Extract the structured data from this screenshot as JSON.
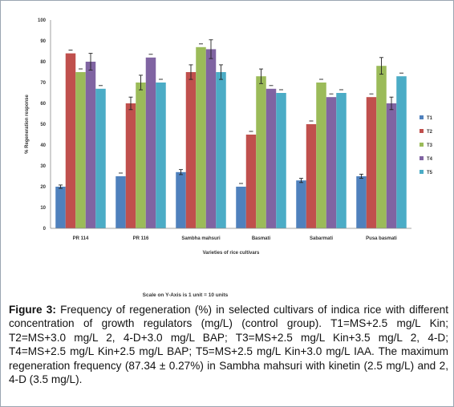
{
  "chart_data": {
    "type": "bar",
    "categories": [
      "PR 114",
      "PR 116",
      "Sambha mahsuri",
      "Basmati",
      "Sabarmati",
      "Pusa basmati"
    ],
    "series": [
      {
        "name": "T1",
        "color": "#4f81bd",
        "values": [
          20,
          25,
          27,
          20,
          23,
          25
        ],
        "errors": [
          0.8,
          0,
          1.2,
          0,
          1,
          1
        ]
      },
      {
        "name": "T2",
        "color": "#c0504d",
        "values": [
          84,
          60,
          75,
          45,
          50,
          63
        ],
        "errors": [
          0,
          3,
          3.5,
          0,
          0,
          0
        ]
      },
      {
        "name": "T3",
        "color": "#9bbb59",
        "values": [
          75,
          70,
          87,
          73,
          70,
          78
        ],
        "errors": [
          0,
          3.5,
          0,
          3.5,
          0,
          4
        ]
      },
      {
        "name": "T4",
        "color": "#8064a2",
        "values": [
          80,
          82,
          86,
          67,
          63,
          60
        ],
        "errors": [
          4,
          0,
          4.5,
          0,
          0,
          3
        ]
      },
      {
        "name": "T5",
        "color": "#4bacc6",
        "values": [
          67,
          70,
          75,
          65,
          65,
          73
        ],
        "errors": [
          0,
          0,
          3.5,
          0,
          0,
          0
        ]
      }
    ],
    "yticks": [
      0,
      10,
      20,
      30,
      40,
      50,
      60,
      70,
      80,
      90,
      100
    ],
    "ylim": [
      0,
      100
    ],
    "ylabel": "% Regeneration response",
    "xlabel": "Varieties of rice cultivars",
    "legend_position": "right",
    "scale_note": "Scale on Y-Axis is 1 unit = 10 units"
  },
  "caption": {
    "label": "Figure 3:",
    "text": " Frequency of regeneration (%) in selected cultivars of indica rice with different concentration of growth regulators (mg/L) (control group). T1=MS+2.5 mg/L Kin; T2=MS+3.0 mg/L 2, 4-D+3.0 mg/L BAP; T3=MS+2.5 mg/L Kin+3.5 mg/L 2, 4-D; T4=MS+2.5 mg/L Kin+2.5 mg/L BAP; T5=MS+2.5 mg/L Kin+3.0 mg/L IAA. The maximum regeneration frequency (87.34 ± 0.27%) in Sambha mahsuri with kinetin (2.5 mg/L) and 2, 4-D (3.5 mg/L)."
  }
}
